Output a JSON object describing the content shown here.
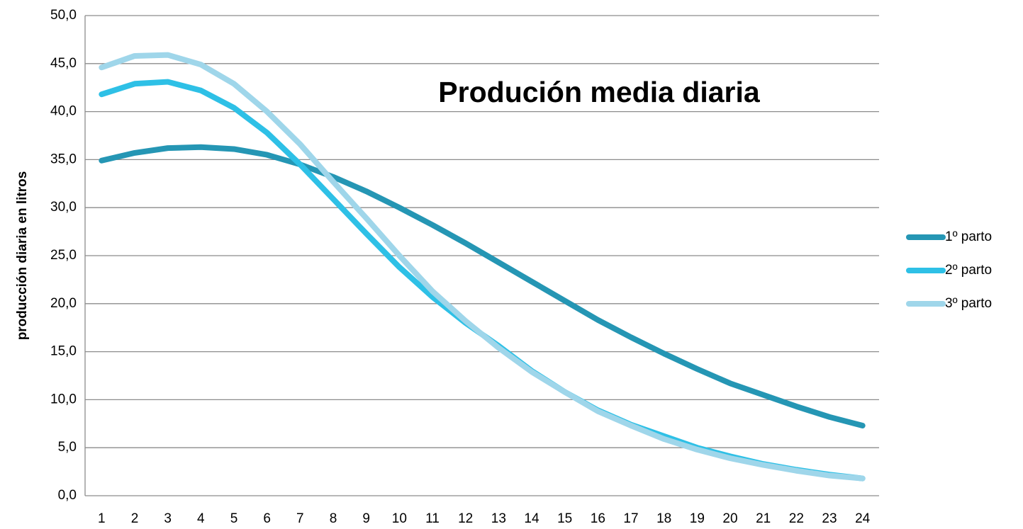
{
  "chart_data": {
    "type": "line",
    "title": "Produción media diaria",
    "y_label": "producción diaria en litros",
    "categories": [
      "1",
      "2",
      "3",
      "4",
      "5",
      "6",
      "7",
      "8",
      "9",
      "10",
      "11",
      "12",
      "13",
      "14",
      "15",
      "16",
      "17",
      "18",
      "19",
      "20",
      "21",
      "22",
      "23",
      "24"
    ],
    "series": [
      {
        "name": "1º parto",
        "color": "#2596b4",
        "values": [
          34.9,
          35.7,
          36.2,
          36.3,
          36.1,
          35.5,
          34.5,
          33.2,
          31.7,
          30.0,
          28.2,
          26.3,
          24.3,
          22.3,
          20.3,
          18.3,
          16.5,
          14.8,
          13.2,
          11.7,
          10.5,
          9.3,
          8.2,
          7.3
        ]
      },
      {
        "name": "2º parto",
        "color": "#2ec0e6",
        "values": [
          41.8,
          42.9,
          43.1,
          42.2,
          40.4,
          37.8,
          34.5,
          30.9,
          27.3,
          23.8,
          20.7,
          18.0,
          15.6,
          13.0,
          10.8,
          8.9,
          7.4,
          6.2,
          5.0,
          4.1,
          3.3,
          2.7,
          2.2,
          1.8
        ]
      },
      {
        "name": "3º parto",
        "color": "#9fd6ea",
        "values": [
          44.6,
          45.8,
          45.9,
          44.9,
          42.9,
          40.0,
          36.6,
          32.7,
          28.9,
          25.0,
          21.3,
          18.2,
          15.4,
          12.9,
          10.8,
          8.8,
          7.3,
          5.9,
          4.8,
          3.9,
          3.2,
          2.6,
          2.1,
          1.8
        ]
      }
    ],
    "ylim": [
      0,
      50
    ],
    "yticks": [
      {
        "value": 0,
        "label": "0,0"
      },
      {
        "value": 5,
        "label": "5,0"
      },
      {
        "value": 10,
        "label": "10,0"
      },
      {
        "value": 15,
        "label": "15,0"
      },
      {
        "value": 20,
        "label": "20,0"
      },
      {
        "value": 25,
        "label": "25,0"
      },
      {
        "value": 30,
        "label": "30,0"
      },
      {
        "value": 35,
        "label": "35,0"
      },
      {
        "value": 40,
        "label": "40,0"
      },
      {
        "value": 45,
        "label": "45,0"
      },
      {
        "value": 50,
        "label": "50,0"
      }
    ],
    "grid": true,
    "legend": "right"
  }
}
